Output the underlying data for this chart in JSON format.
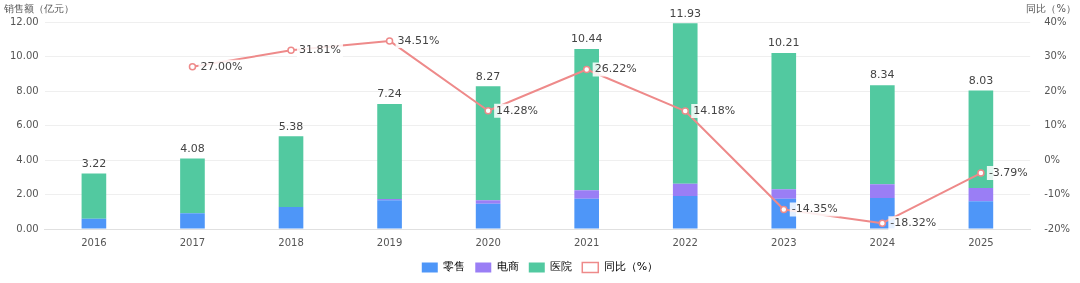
{
  "chart_data": {
    "type": "bar",
    "stacked": true,
    "ylabel": "销售额（亿元）",
    "y2label": "同比（%）",
    "categories": [
      "2016",
      "2017",
      "2018",
      "2019",
      "2020",
      "2021",
      "2022",
      "2023",
      "2024",
      "2025"
    ],
    "series": [
      {
        "name": "零售",
        "color": "#4e96f8",
        "values": [
          0.6,
          0.92,
          1.28,
          1.67,
          1.47,
          1.76,
          1.92,
          1.76,
          1.8,
          1.61
        ]
      },
      {
        "name": "电商",
        "color": "#9a7ef5",
        "values": [
          null,
          null,
          null,
          0.07,
          0.2,
          0.48,
          0.71,
          0.55,
          0.79,
          0.77
        ]
      },
      {
        "name": "医院",
        "color": "#52c9a0",
        "values": [
          2.62,
          3.16,
          4.1,
          5.5,
          6.6,
          8.2,
          9.3,
          7.9,
          5.75,
          5.65
        ]
      },
      {
        "name": "同比（%）",
        "type": "line",
        "axis": "y2",
        "color": "#ee8a8a",
        "marker": "circle",
        "values": [
          null,
          27.0,
          31.81,
          34.51,
          14.28,
          26.22,
          14.18,
          -14.35,
          -18.32,
          -3.79
        ],
        "value_labels": [
          null,
          "27.00%",
          "31.81%",
          "34.51%",
          "14.28%",
          "26.22%",
          "14.18%",
          "-14.35%",
          "-18.32%",
          "-3.79%"
        ]
      }
    ],
    "totals": [
      "3.22",
      "4.08",
      "5.38",
      "7.24",
      "8.27",
      "10.44",
      "11.93",
      "10.21",
      "8.34",
      "8.03"
    ],
    "ylim": [
      0,
      12
    ],
    "yticks": [
      {
        "value": 0,
        "label": "0.00"
      },
      {
        "value": 2,
        "label": "2.00"
      },
      {
        "value": 4,
        "label": "4.00"
      },
      {
        "value": 6,
        "label": "6.00"
      },
      {
        "value": 8,
        "label": "8.00"
      },
      {
        "value": 10,
        "label": "10.00"
      },
      {
        "value": 12,
        "label": "12.00"
      }
    ],
    "y2lim": [
      -20,
      40
    ],
    "y2ticks": [
      {
        "value": -20,
        "label": "-20%"
      },
      {
        "value": -10,
        "label": "-10%"
      },
      {
        "value": 0,
        "label": "0%"
      },
      {
        "value": 10,
        "label": "10%"
      },
      {
        "value": 20,
        "label": "20%"
      },
      {
        "value": 30,
        "label": "30%"
      },
      {
        "value": 40,
        "label": "40%"
      }
    ],
    "grid": "y",
    "legend": "bottom"
  }
}
